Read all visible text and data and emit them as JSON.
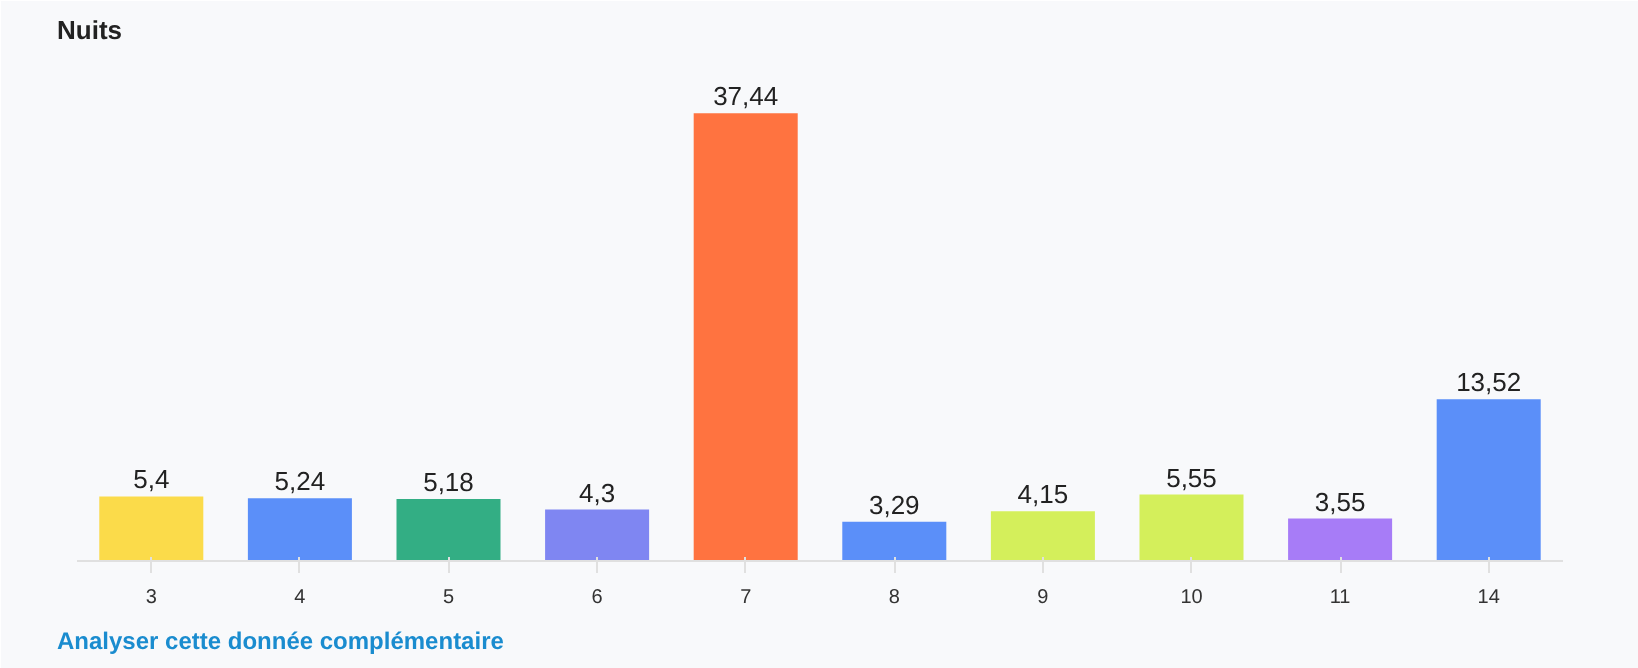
{
  "chart_data": {
    "type": "bar",
    "title": "Nuits",
    "categories": [
      "3",
      "4",
      "5",
      "6",
      "7",
      "8",
      "9",
      "10",
      "11",
      "14"
    ],
    "values": [
      5.4,
      5.24,
      5.18,
      4.3,
      37.44,
      3.29,
      4.15,
      5.55,
      3.55,
      13.52
    ],
    "colors": [
      "#fbdb4a",
      "#5b8ff9",
      "#33ae84",
      "#7f86f2",
      "#ff7340",
      "#5b8ff9",
      "#d4ef5b",
      "#d4ef5b",
      "#a77cf7",
      "#5b8ff9"
    ],
    "value_labels": [
      "5,4",
      "5,24",
      "5,18",
      "4,3",
      "37,44",
      "3,29",
      "4,15",
      "5,55",
      "3,55",
      "13,52"
    ],
    "annotations": [
      "Analyser cette donnée complémentaire"
    ]
  }
}
